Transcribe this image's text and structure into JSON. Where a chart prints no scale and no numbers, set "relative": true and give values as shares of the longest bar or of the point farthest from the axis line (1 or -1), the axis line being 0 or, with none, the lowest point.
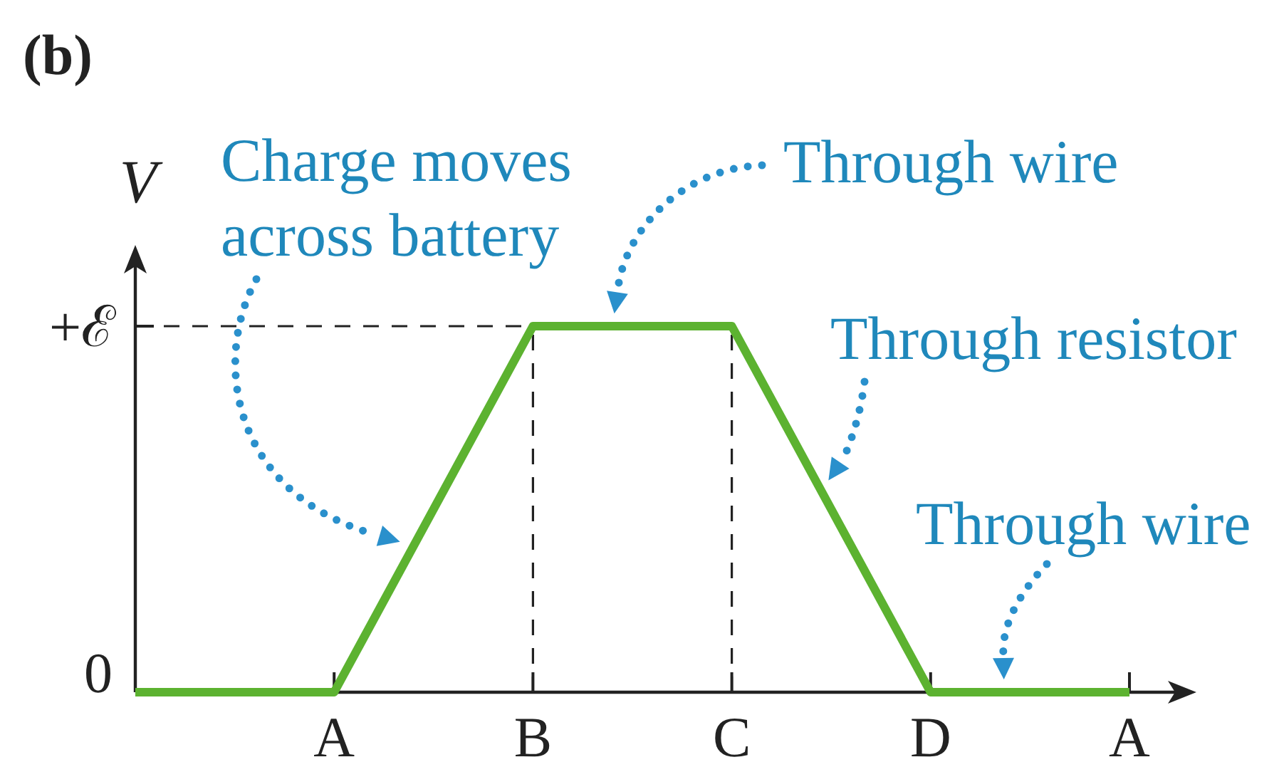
{
  "chart_data": {
    "type": "line",
    "relative": true,
    "title": "(b)",
    "ylabel": "V",
    "categories": [
      null,
      "A",
      "B",
      "C",
      "D",
      "A"
    ],
    "series": [
      {
        "color": "#5cb230",
        "values": [
          0,
          0,
          1,
          1,
          0,
          0
        ]
      }
    ],
    "line_style": "solid",
    "ref_lines": [
      {
        "axis": "y",
        "value": 1,
        "label": "+ℰ",
        "color": "#222222",
        "line_style": "dashed"
      },
      {
        "axis": "x",
        "value": "B",
        "color": "#222222",
        "line_style": "dashed"
      },
      {
        "axis": "x",
        "value": "C",
        "color": "#222222",
        "line_style": "dashed"
      }
    ],
    "annotations": [
      "Charge moves\nacross battery",
      "Through wire",
      "Through resistor",
      "Through wire",
      "0"
    ]
  }
}
